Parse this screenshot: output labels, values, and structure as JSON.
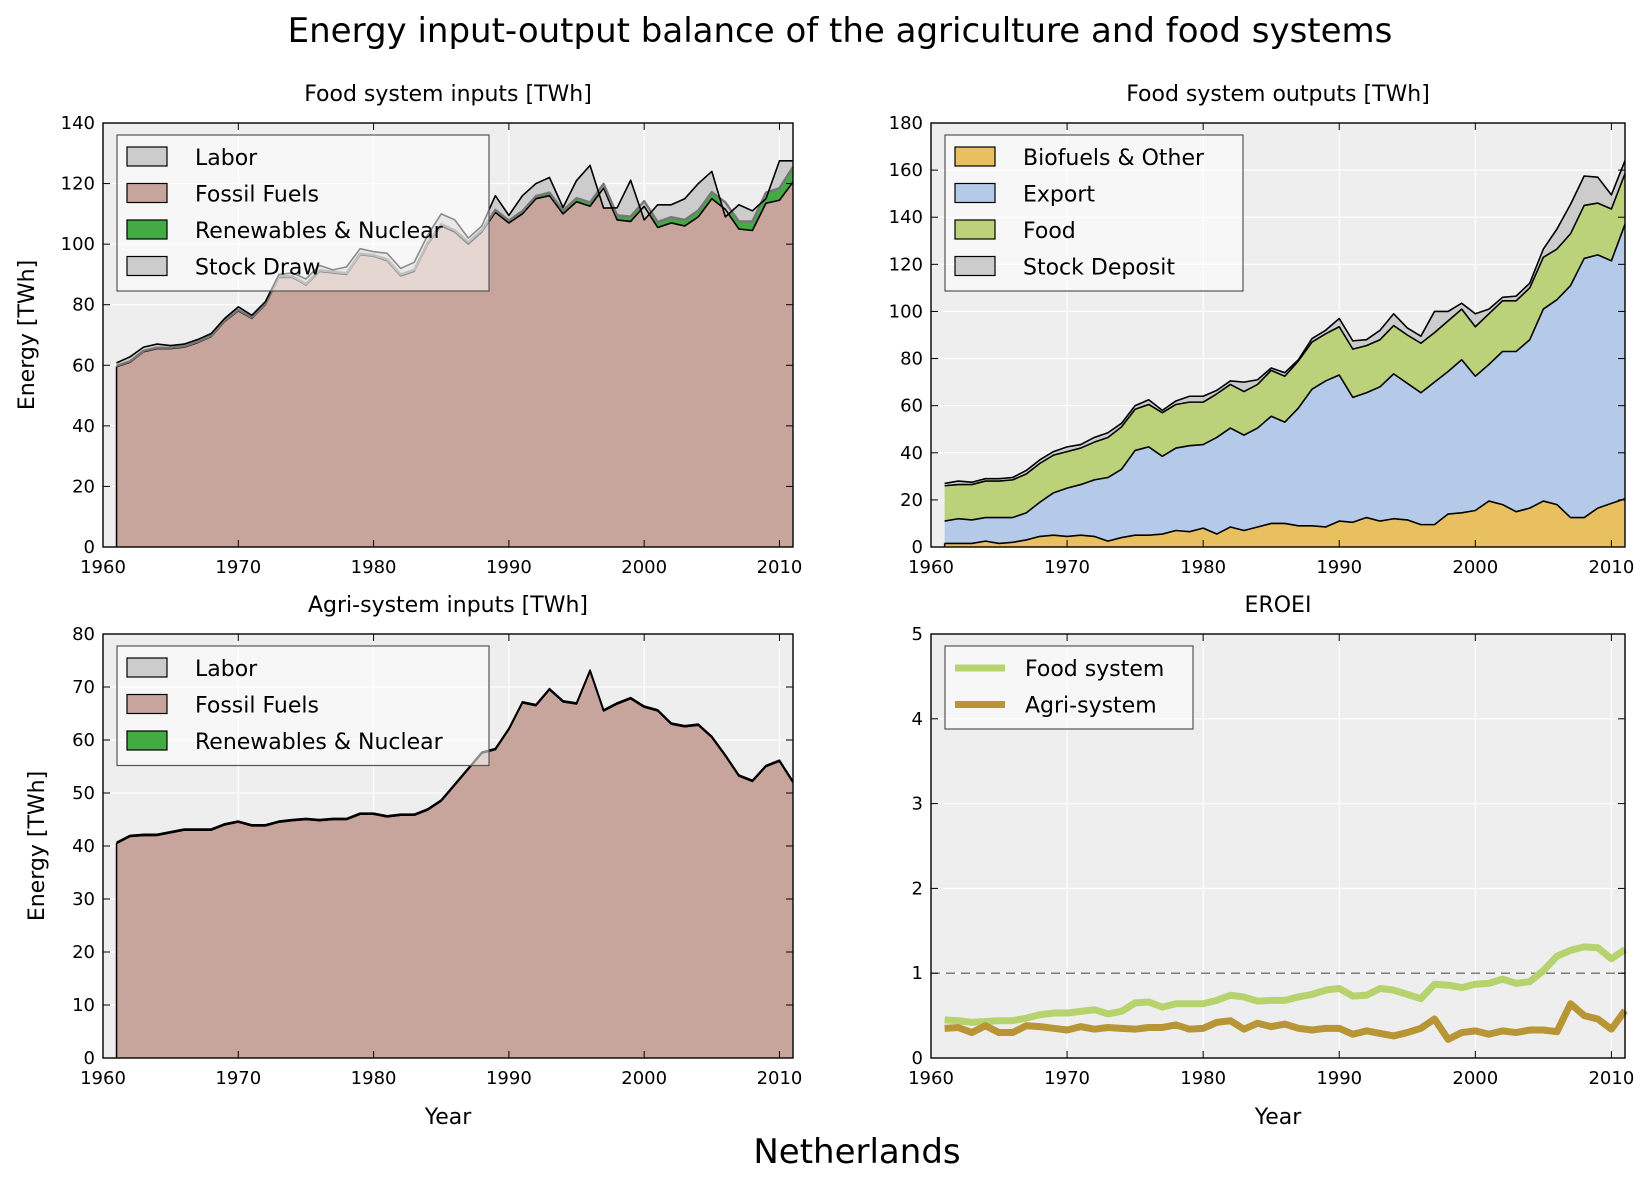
{
  "figure": {
    "title": "Energy input-output balance of the agriculture and food systems",
    "footer": "Netherlands"
  },
  "colors": {
    "plot_background": "#eeeeee",
    "labor": "#cccccc",
    "fossil": "#c8a59c",
    "renewables": "#44aa44",
    "stock_draw": "#cccccc",
    "biofuels": "#e9c060",
    "export": "#b4cae8",
    "food": "#bcd27a",
    "stock_deposit": "#cccccc",
    "food_system_line": "#b7d36d",
    "agri_system_line": "#b89636"
  },
  "chart_data": [
    {
      "id": "food-inputs",
      "type": "area",
      "title": "Food system inputs [TWh]",
      "xlabel": "",
      "ylabel": "Energy [TWh]",
      "xlim": [
        1960,
        2011
      ],
      "ylim": [
        0,
        140
      ],
      "xticks": [
        1960,
        1970,
        1980,
        1990,
        2000,
        2010
      ],
      "yticks": [
        0,
        20,
        40,
        60,
        80,
        100,
        120,
        140
      ],
      "grid": true,
      "stacked": true,
      "legend_position": "top-left",
      "x": [
        1961,
        1962,
        1963,
        1964,
        1965,
        1966,
        1967,
        1968,
        1969,
        1970,
        1971,
        1972,
        1973,
        1974,
        1975,
        1976,
        1977,
        1978,
        1979,
        1980,
        1981,
        1982,
        1983,
        1984,
        1985,
        1986,
        1987,
        1988,
        1989,
        1990,
        1991,
        1992,
        1993,
        1994,
        1995,
        1996,
        1997,
        1998,
        1999,
        2000,
        2001,
        2002,
        2003,
        2004,
        2005,
        2006,
        2007,
        2008,
        2009,
        2010,
        2011
      ],
      "series": [
        {
          "name": "Fossil Fuels",
          "color_key": "fossil",
          "values": [
            59.5,
            61,
            64.5,
            65.5,
            65.5,
            66,
            67.5,
            69.5,
            74.5,
            78,
            75.5,
            80,
            89,
            89,
            86.5,
            91,
            90.5,
            90,
            96.5,
            96,
            94.5,
            89.5,
            91,
            100,
            106,
            104,
            100,
            104,
            110.5,
            107,
            110,
            115,
            116,
            110,
            114,
            112.5,
            118.5,
            108,
            107.5,
            112.5,
            105.5,
            107,
            106,
            109,
            115,
            111.5,
            105,
            104.5,
            113.5,
            114.5,
            120.5
          ]
        },
        {
          "name": "Renewables & Nuclear",
          "color_key": "renewables",
          "values": [
            0.3,
            0.3,
            0.3,
            0.3,
            0.3,
            0.3,
            0.3,
            0.3,
            0.3,
            0.3,
            0.3,
            0.3,
            0.4,
            0.4,
            0.4,
            0.4,
            0.4,
            0.4,
            0.4,
            0.4,
            0.5,
            0.5,
            0.5,
            0.5,
            0.6,
            0.6,
            0.7,
            0.7,
            0.8,
            0.8,
            0.9,
            0.9,
            1,
            1.1,
            1.2,
            1.3,
            1.4,
            1.5,
            1.6,
            1.7,
            1.8,
            1.9,
            2,
            2.1,
            2.2,
            2.3,
            2.5,
            3,
            3.5,
            4,
            5
          ]
        },
        {
          "name": "Stock Draw",
          "color_key": "stock_draw",
          "values": [
            0,
            0,
            0,
            0,
            0,
            0,
            0,
            0,
            0,
            0,
            0,
            0,
            0,
            0,
            0,
            0,
            0,
            0,
            0,
            0,
            0,
            0,
            0,
            0,
            0,
            0,
            0,
            0,
            0,
            0,
            0,
            0,
            0,
            0,
            0,
            0,
            0,
            0,
            0,
            0,
            0,
            0,
            0,
            0,
            0,
            0,
            0,
            0,
            0,
            0,
            0
          ]
        },
        {
          "name": "Labor",
          "color_key": "labor",
          "values": [
            1,
            1.5,
            1.2,
            1.2,
            0.7,
            0.7,
            0.7,
            0.7,
            0.7,
            1,
            0.7,
            0.7,
            0.6,
            1.1,
            1.6,
            1.6,
            0.6,
            2.1,
            1.6,
            1.1,
            2,
            2,
            2.5,
            2.5,
            3.4,
            3.4,
            1.3,
            1.3,
            4.7,
            1.7,
            5.1,
            4.1,
            5,
            1,
            5.8,
            12.2,
            -8,
            2.5,
            12,
            -6.2,
            5.7,
            4.1,
            7,
            8.9,
            6.8,
            -4.8,
            5.5,
            3.5,
            -2,
            9,
            2
          ]
        }
      ]
    },
    {
      "id": "food-outputs",
      "type": "area",
      "title": "Food system outputs [TWh]",
      "xlabel": "",
      "ylabel": "",
      "xlim": [
        1960,
        2011
      ],
      "ylim": [
        0,
        180
      ],
      "xticks": [
        1960,
        1970,
        1980,
        1990,
        2000,
        2010
      ],
      "yticks": [
        0,
        20,
        40,
        60,
        80,
        100,
        120,
        140,
        160,
        180
      ],
      "grid": true,
      "stacked": true,
      "legend_position": "top-left",
      "x": [
        1961,
        1962,
        1963,
        1964,
        1965,
        1966,
        1967,
        1968,
        1969,
        1970,
        1971,
        1972,
        1973,
        1974,
        1975,
        1976,
        1977,
        1978,
        1979,
        1980,
        1981,
        1982,
        1983,
        1984,
        1985,
        1986,
        1987,
        1988,
        1989,
        1990,
        1991,
        1992,
        1993,
        1994,
        1995,
        1996,
        1997,
        1998,
        1999,
        2000,
        2001,
        2002,
        2003,
        2004,
        2005,
        2006,
        2007,
        2008,
        2009,
        2010,
        2011
      ],
      "series": [
        {
          "name": "Biofuels & Other",
          "color_key": "biofuels",
          "values": [
            1.5,
            1.5,
            1.5,
            2.5,
            1.5,
            2,
            3,
            4.5,
            5,
            4.5,
            5,
            4.5,
            2.5,
            4,
            5,
            5,
            5.5,
            7,
            6.5,
            8,
            5.5,
            8.5,
            7,
            8.5,
            10,
            10,
            9,
            9,
            8.5,
            11,
            10.5,
            12.5,
            11,
            12,
            11.5,
            9.5,
            9.5,
            14,
            14.5,
            15.5,
            19.5,
            18,
            15,
            16.5,
            19.5,
            18,
            12.5,
            12.5,
            16.5,
            18.5,
            20.5
          ]
        },
        {
          "name": "Export",
          "color_key": "export",
          "values": [
            9.5,
            10.5,
            10,
            10,
            11,
            10.5,
            11.5,
            14.5,
            18,
            20.5,
            21.5,
            24,
            27,
            29,
            36,
            37.5,
            33,
            35,
            36.5,
            35.5,
            41,
            42,
            40.5,
            42,
            45.5,
            43,
            50,
            58,
            62,
            62,
            53,
            53,
            57,
            61.5,
            58,
            56,
            60.5,
            60.5,
            65,
            57,
            58,
            65,
            68,
            71.5,
            81.5,
            87,
            98.5,
            110,
            107.5,
            103,
            116.5
          ]
        },
        {
          "name": "Food",
          "color_key": "food",
          "values": [
            15,
            14.5,
            15,
            15.5,
            15.5,
            16,
            16.5,
            16.5,
            16,
            15.5,
            15.5,
            16,
            17,
            18,
            17.5,
            18,
            18.5,
            18.5,
            18.5,
            18,
            18.5,
            18.5,
            18.5,
            18.5,
            19.5,
            19.5,
            20,
            20,
            20,
            20.5,
            20.5,
            20,
            20,
            20.5,
            20.5,
            21,
            21,
            21.5,
            21.5,
            21,
            21.5,
            21.5,
            21.5,
            22,
            22,
            21.5,
            22,
            22.5,
            22,
            22,
            21.5
          ]
        },
        {
          "name": "Stock Deposit",
          "color_key": "stock_deposit",
          "values": [
            1,
            1.5,
            1,
            1,
            1,
            1,
            1.5,
            1.5,
            1.5,
            2,
            1.5,
            2,
            2,
            1.5,
            1.5,
            2,
            1,
            1.5,
            2.5,
            2.5,
            1.5,
            1.5,
            4,
            2,
            1,
            1.5,
            0.5,
            1.5,
            1.5,
            3.5,
            3.5,
            2.5,
            4,
            5,
            3,
            3,
            9,
            4,
            2.5,
            5.5,
            2,
            1.5,
            2,
            2,
            3.5,
            8.5,
            12.5,
            12.5,
            11,
            6,
            5.5
          ]
        }
      ]
    },
    {
      "id": "agri-inputs",
      "type": "area",
      "title": "Agri-system inputs [TWh]",
      "xlabel": "Year",
      "ylabel": "Energy [TWh]",
      "xlim": [
        1960,
        2011
      ],
      "ylim": [
        0,
        80
      ],
      "xticks": [
        1960,
        1970,
        1980,
        1990,
        2000,
        2010
      ],
      "yticks": [
        0,
        10,
        20,
        30,
        40,
        50,
        60,
        70,
        80
      ],
      "grid": true,
      "stacked": true,
      "legend_position": "top-left",
      "x": [
        1961,
        1962,
        1963,
        1964,
        1965,
        1966,
        1967,
        1968,
        1969,
        1970,
        1971,
        1972,
        1973,
        1974,
        1975,
        1976,
        1977,
        1978,
        1979,
        1980,
        1981,
        1982,
        1983,
        1984,
        1985,
        1986,
        1987,
        1988,
        1989,
        1990,
        1991,
        1992,
        1993,
        1994,
        1995,
        1996,
        1997,
        1998,
        1999,
        2000,
        2001,
        2002,
        2003,
        2004,
        2005,
        2006,
        2007,
        2008,
        2009,
        2010,
        2011
      ],
      "series": [
        {
          "name": "Fossil Fuels",
          "color_key": "fossil",
          "values": [
            40.5,
            41.8,
            42,
            42,
            42.5,
            43,
            43,
            43,
            44,
            44.5,
            43.8,
            43.8,
            44.5,
            44.8,
            45,
            44.8,
            45,
            45,
            46,
            46,
            45.5,
            45.8,
            45.8,
            46.8,
            48.5,
            51.5,
            54.5,
            57.5,
            58.2,
            62,
            67,
            66.5,
            69.5,
            67.2,
            66.8,
            73,
            65.5,
            66.8,
            67.8,
            66.2,
            65.5,
            63,
            62.5,
            62.8,
            60.5,
            57,
            53.2,
            52.2,
            55,
            56,
            52
          ]
        },
        {
          "name": "Renewables & Nuclear",
          "color_key": "renewables",
          "values": [
            0,
            0,
            0,
            0,
            0,
            0,
            0,
            0,
            0,
            0,
            0,
            0,
            0,
            0,
            0,
            0,
            0,
            0,
            0,
            0,
            0,
            0,
            0,
            0,
            0,
            0,
            0,
            0,
            0,
            0,
            0,
            0,
            0,
            0,
            0,
            0,
            0,
            0,
            0,
            0,
            0,
            0,
            0,
            0,
            0,
            0,
            0,
            0,
            0,
            0,
            0
          ]
        },
        {
          "name": "Labor",
          "color_key": "labor",
          "values": [
            0.2,
            0.2,
            0.2,
            0.2,
            0.2,
            0.2,
            0.2,
            0.2,
            0.2,
            0.2,
            0.2,
            0.2,
            0.2,
            0.2,
            0.2,
            0.2,
            0.2,
            0.2,
            0.2,
            0.2,
            0.2,
            0.2,
            0.2,
            0.2,
            0.2,
            0.2,
            0.2,
            0.2,
            0.2,
            0.2,
            0.2,
            0.2,
            0.2,
            0.2,
            0.2,
            0.2,
            0.2,
            0.2,
            0.2,
            0.2,
            0.2,
            0.2,
            0.2,
            0.2,
            0.2,
            0.2,
            0.2,
            0.2,
            0.2,
            0.2,
            0.2
          ]
        }
      ]
    },
    {
      "id": "eroei",
      "type": "line",
      "title": "EROEI",
      "xlabel": "Year",
      "ylabel": "",
      "xlim": [
        1960,
        2011
      ],
      "ylim": [
        0,
        5
      ],
      "xticks": [
        1960,
        1970,
        1980,
        1990,
        2000,
        2010
      ],
      "yticks": [
        0,
        1,
        2,
        3,
        4,
        5
      ],
      "grid": true,
      "reference_line": 1,
      "legend_position": "top-left",
      "x": [
        1961,
        1962,
        1963,
        1964,
        1965,
        1966,
        1967,
        1968,
        1969,
        1970,
        1971,
        1972,
        1973,
        1974,
        1975,
        1976,
        1977,
        1978,
        1979,
        1980,
        1981,
        1982,
        1983,
        1984,
        1985,
        1986,
        1987,
        1988,
        1989,
        1990,
        1991,
        1992,
        1993,
        1994,
        1995,
        1996,
        1997,
        1998,
        1999,
        2000,
        2001,
        2002,
        2003,
        2004,
        2005,
        2006,
        2007,
        2008,
        2009,
        2010,
        2011
      ],
      "series": [
        {
          "name": "Food system",
          "color_key": "food_system_line",
          "values": [
            0.45,
            0.44,
            0.42,
            0.43,
            0.44,
            0.44,
            0.47,
            0.51,
            0.53,
            0.53,
            0.55,
            0.57,
            0.52,
            0.55,
            0.65,
            0.66,
            0.6,
            0.64,
            0.64,
            0.64,
            0.68,
            0.74,
            0.72,
            0.67,
            0.68,
            0.68,
            0.72,
            0.75,
            0.8,
            0.82,
            0.73,
            0.74,
            0.82,
            0.8,
            0.75,
            0.7,
            0.87,
            0.86,
            0.83,
            0.87,
            0.88,
            0.93,
            0.88,
            0.9,
            1.03,
            1.2,
            1.27,
            1.31,
            1.3,
            1.17,
            1.28
          ]
        },
        {
          "name": "Agri-system",
          "color_key": "agri_system_line",
          "values": [
            0.35,
            0.36,
            0.3,
            0.38,
            0.3,
            0.3,
            0.38,
            0.37,
            0.35,
            0.33,
            0.37,
            0.34,
            0.36,
            0.35,
            0.34,
            0.36,
            0.36,
            0.39,
            0.34,
            0.35,
            0.42,
            0.44,
            0.34,
            0.41,
            0.37,
            0.4,
            0.35,
            0.33,
            0.35,
            0.35,
            0.28,
            0.32,
            0.29,
            0.26,
            0.3,
            0.35,
            0.46,
            0.22,
            0.3,
            0.32,
            0.28,
            0.32,
            0.3,
            0.33,
            0.33,
            0.31,
            0.64,
            0.5,
            0.46,
            0.34,
            0.56
          ]
        }
      ]
    }
  ]
}
